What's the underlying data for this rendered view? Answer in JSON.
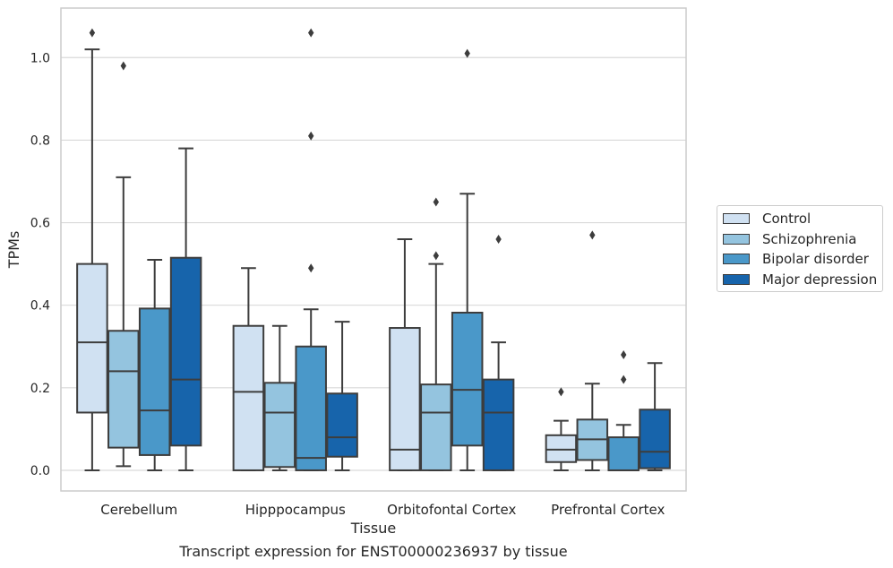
{
  "caption": "Transcript expression for ENST00000236937 by tissue",
  "chart_data": {
    "type": "box",
    "xlabel": "Tissue",
    "ylabel": "TPMs",
    "ylim": [
      -0.05,
      1.12
    ],
    "yticks": [
      "0.0",
      "0.2",
      "0.4",
      "0.6",
      "0.8",
      "1.0"
    ],
    "ytick_values": [
      0.0,
      0.2,
      0.4,
      0.6,
      0.8,
      1.0
    ],
    "grid": true,
    "legend_position": "right",
    "categories": [
      "Cerebellum",
      "Hipppocampus",
      "Orbitofontal Cortex",
      "Prefrontal Cortex"
    ],
    "series": [
      {
        "name": "Control",
        "color": "#d0e1f2",
        "boxes": [
          {
            "whisker_low": 0.0,
            "q1": 0.14,
            "median": 0.31,
            "q3": 0.5,
            "whisker_high": 1.02,
            "outliers": [
              1.06
            ]
          },
          {
            "whisker_low": 0.0,
            "q1": 0.0,
            "median": 0.19,
            "q3": 0.35,
            "whisker_high": 0.49,
            "outliers": []
          },
          {
            "whisker_low": 0.0,
            "q1": 0.0,
            "median": 0.05,
            "q3": 0.345,
            "whisker_high": 0.56,
            "outliers": []
          },
          {
            "whisker_low": 0.0,
            "q1": 0.02,
            "median": 0.05,
            "q3": 0.085,
            "whisker_high": 0.12,
            "outliers": [
              0.19
            ]
          }
        ]
      },
      {
        "name": "Schizophrenia",
        "color": "#94c4df",
        "boxes": [
          {
            "whisker_low": 0.01,
            "q1": 0.055,
            "median": 0.24,
            "q3": 0.338,
            "whisker_high": 0.71,
            "outliers": [
              0.98
            ]
          },
          {
            "whisker_low": 0.0,
            "q1": 0.008,
            "median": 0.14,
            "q3": 0.212,
            "whisker_high": 0.35,
            "outliers": []
          },
          {
            "whisker_low": 0.0,
            "q1": 0.0,
            "median": 0.14,
            "q3": 0.208,
            "whisker_high": 0.5,
            "outliers": [
              0.52,
              0.65
            ]
          },
          {
            "whisker_low": 0.0,
            "q1": 0.025,
            "median": 0.075,
            "q3": 0.123,
            "whisker_high": 0.21,
            "outliers": [
              0.57
            ]
          }
        ]
      },
      {
        "name": "Bipolar disorder",
        "color": "#4a98c9",
        "boxes": [
          {
            "whisker_low": 0.0,
            "q1": 0.037,
            "median": 0.145,
            "q3": 0.392,
            "whisker_high": 0.51,
            "outliers": []
          },
          {
            "whisker_low": 0.0,
            "q1": 0.0,
            "median": 0.03,
            "q3": 0.3,
            "whisker_high": 0.39,
            "outliers": [
              0.49,
              0.81,
              1.06
            ]
          },
          {
            "whisker_low": 0.0,
            "q1": 0.06,
            "median": 0.195,
            "q3": 0.382,
            "whisker_high": 0.67,
            "outliers": [
              1.01
            ]
          },
          {
            "whisker_low": 0.0,
            "q1": 0.0,
            "median": 0.0,
            "q3": 0.08,
            "whisker_high": 0.11,
            "outliers": [
              0.22,
              0.28
            ]
          }
        ]
      },
      {
        "name": "Major depression",
        "color": "#1764ab",
        "boxes": [
          {
            "whisker_low": 0.0,
            "q1": 0.06,
            "median": 0.22,
            "q3": 0.515,
            "whisker_high": 0.78,
            "outliers": []
          },
          {
            "whisker_low": 0.0,
            "q1": 0.033,
            "median": 0.08,
            "q3": 0.186,
            "whisker_high": 0.36,
            "outliers": []
          },
          {
            "whisker_low": 0.0,
            "q1": 0.0,
            "median": 0.14,
            "q3": 0.22,
            "whisker_high": 0.31,
            "outliers": [
              0.56
            ]
          },
          {
            "whisker_low": 0.0,
            "q1": 0.005,
            "median": 0.045,
            "q3": 0.147,
            "whisker_high": 0.26,
            "outliers": []
          }
        ]
      }
    ]
  }
}
